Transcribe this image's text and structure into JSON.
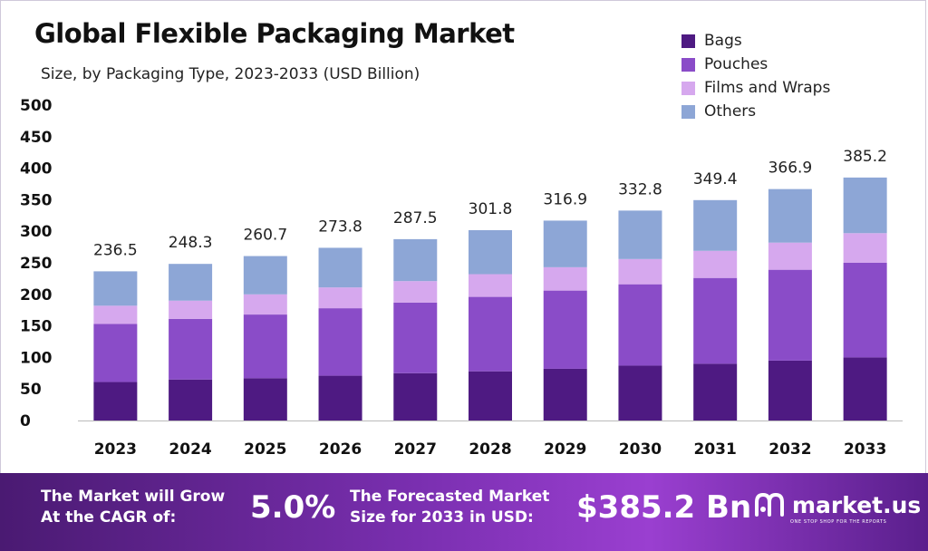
{
  "title": "Global Flexible Packaging Market",
  "subtitle": "Size, by Packaging Type, 2023-2033 (USD Billion)",
  "colors": {
    "bags": "#4e1a82",
    "pouches": "#8a4cc8",
    "films": "#d6a8ee",
    "others": "#8da6d6"
  },
  "legend": [
    {
      "label": "Bags",
      "color": "#4e1a82"
    },
    {
      "label": "Pouches",
      "color": "#8a4cc8"
    },
    {
      "label": "Films and Wraps",
      "color": "#d6a8ee"
    },
    {
      "label": "Others",
      "color": "#8da6d6"
    }
  ],
  "chart_data": {
    "type": "bar",
    "stacked": true,
    "categories": [
      "2023",
      "2024",
      "2025",
      "2026",
      "2027",
      "2028",
      "2029",
      "2030",
      "2031",
      "2032",
      "2033"
    ],
    "series": [
      {
        "name": "Bags",
        "values": [
          61,
          65,
          67,
          71,
          75,
          78,
          82,
          87,
          90,
          95,
          100
        ]
      },
      {
        "name": "Pouches",
        "values": [
          92,
          96,
          101,
          107,
          112,
          118,
          124,
          129,
          136,
          144,
          150
        ]
      },
      {
        "name": "Films and Wraps",
        "values": [
          29,
          29,
          32,
          33,
          34,
          36,
          37,
          40,
          43,
          43,
          47
        ]
      },
      {
        "name": "Others",
        "values": [
          54.5,
          58.3,
          60.7,
          62.8,
          66.5,
          69.8,
          73.9,
          76.8,
          80.4,
          84.9,
          88.2
        ]
      }
    ],
    "totals": [
      "236.5",
      "248.3",
      "260.7",
      "273.8",
      "287.5",
      "301.8",
      "316.9",
      "332.8",
      "349.4",
      "366.9",
      "385.2"
    ],
    "yticks": [
      "0",
      "50",
      "100",
      "150",
      "200",
      "250",
      "300",
      "350",
      "400",
      "450",
      "500"
    ],
    "ylim": [
      0,
      500
    ],
    "legend_position": "top-right",
    "grid": false
  },
  "footer": {
    "cagr_line1": "The Market will Grow",
    "cagr_line2": "At the CAGR of:",
    "cagr_value": "5.0%",
    "forecast_line1": "The Forecasted Market",
    "forecast_line2": "Size for 2033 in USD:",
    "forecast_value": "$385.2 Bn",
    "brand": "market.us",
    "tagline": "ONE STOP SHOP FOR THE REPORTS"
  }
}
